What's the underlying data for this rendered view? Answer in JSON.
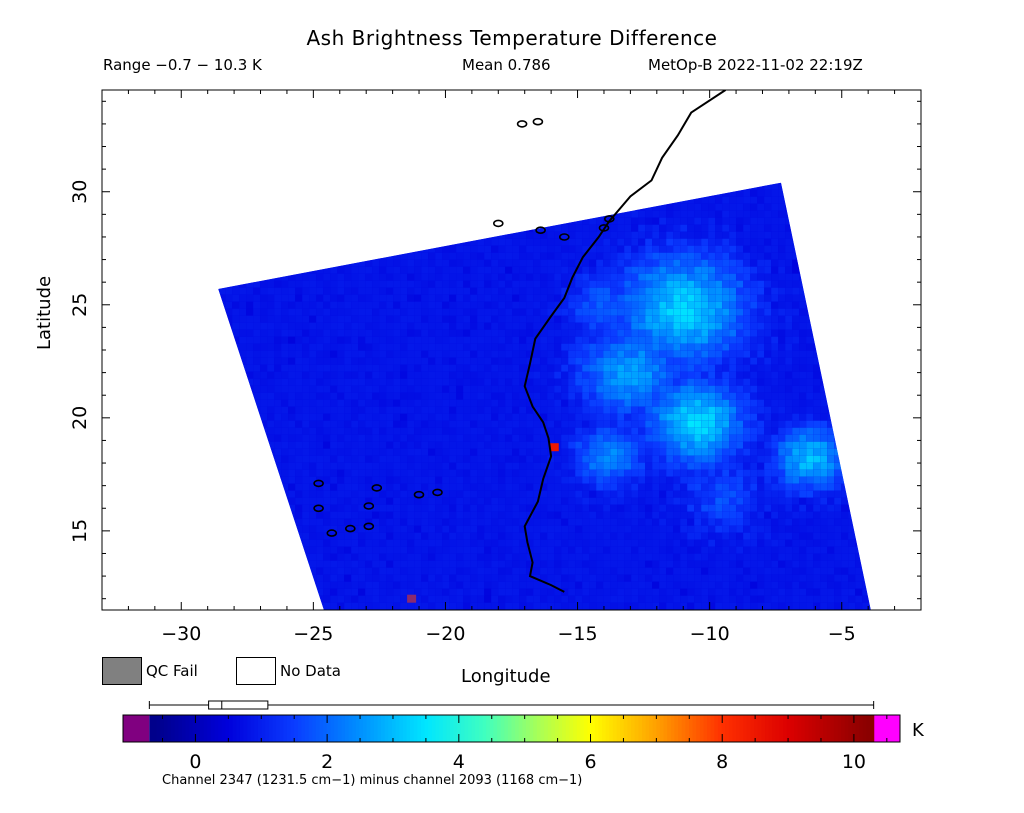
{
  "header": {
    "title": "Ash Brightness Temperature Difference",
    "range": "Range −0.7 − 10.3 K",
    "mean": "Mean 0.786",
    "satellite": "MetOp-B 2022-11-02 22:19Z"
  },
  "axes": {
    "xlabel": "Longitude",
    "ylabel": "Latitude",
    "x_range": [
      -33,
      -2
    ],
    "y_range": [
      11.5,
      34.5
    ],
    "x_ticks": [
      -30,
      -25,
      -20,
      -15,
      -10,
      -5
    ],
    "x_tick_labels": [
      "−30",
      "−25",
      "−20",
      "−15",
      "−10",
      "−5"
    ],
    "y_ticks": [
      15,
      20,
      25,
      30
    ],
    "y_tick_labels": [
      "15",
      "20",
      "25",
      "30"
    ]
  },
  "legend": {
    "qc_fail": "QC Fail",
    "no_data": "No Data",
    "qc_fail_color": "#808080"
  },
  "colorbar": {
    "unit": "K",
    "range": [
      -1.1,
      10.7
    ],
    "ticks": [
      0,
      2,
      4,
      6,
      8,
      10
    ],
    "tick_labels": [
      "0",
      "2",
      "4",
      "6",
      "8",
      "10"
    ],
    "under_color": "#800080",
    "over_color": "#ff00ff",
    "stops": [
      "#00008b",
      "#0000dc",
      "#0a3cff",
      "#0090ff",
      "#00e6ff",
      "#40ffbf",
      "#a8ff58",
      "#ffff00",
      "#ffa000",
      "#ff3000",
      "#dc0000",
      "#8b0000"
    ],
    "stop_values": [
      -0.6,
      0.5,
      1.5,
      2.5,
      3.5,
      4.4,
      5.2,
      6.0,
      7.0,
      8.0,
      9.0,
      10.2
    ],
    "boxplot": {
      "min": -0.7,
      "q1": 0.2,
      "median": 0.4,
      "q3": 1.1,
      "max": 10.3
    },
    "caption": "Channel 2347 (1231.5 cm−1) minus channel 2093 (1168 cm−1)"
  },
  "chart_data": {
    "type": "heatmap",
    "title": "Ash Brightness Temperature Difference",
    "xlabel": "Longitude",
    "ylabel": "Latitude",
    "xlim": [
      -33,
      -2
    ],
    "ylim": [
      11.5,
      34.5
    ],
    "value_unit": "K",
    "value_range": [
      -0.7,
      10.3
    ],
    "mean": 0.786,
    "swath_corners_lonlat": [
      [
        -28.6,
        25.7
      ],
      [
        -7.3,
        30.4
      ],
      [
        -3.9,
        11.5
      ],
      [
        -24.6,
        11.5
      ]
    ],
    "background_value": 0.6,
    "features": [
      {
        "lon": -11.0,
        "lat": 24.8,
        "radius_deg": 3.2,
        "value": 3.2
      },
      {
        "lon": -13.0,
        "lat": 22.0,
        "radius_deg": 2.6,
        "value": 2.6
      },
      {
        "lon": -10.5,
        "lat": 19.8,
        "radius_deg": 2.4,
        "value": 3.3
      },
      {
        "lon": -6.2,
        "lat": 18.2,
        "radius_deg": 1.8,
        "value": 3.0
      },
      {
        "lon": -13.8,
        "lat": 18.3,
        "radius_deg": 1.8,
        "value": 2.4
      },
      {
        "lon": -14.0,
        "lat": 25.0,
        "radius_deg": 1.8,
        "value": 1.9
      },
      {
        "lon": -9.5,
        "lat": 16.5,
        "radius_deg": 2.2,
        "value": 1.6
      }
    ],
    "hotspots": [
      {
        "lon": -15.9,
        "lat": 18.7,
        "value": 8.5
      },
      {
        "lon": -21.3,
        "lat": 12.0,
        "value": -0.9
      }
    ],
    "coastline_lonlat": [
      [
        -9.4,
        34.5
      ],
      [
        -10.7,
        33.5
      ],
      [
        -11.2,
        32.5
      ],
      [
        -11.8,
        31.5
      ],
      [
        -12.2,
        30.5
      ],
      [
        -13.0,
        29.8
      ],
      [
        -13.8,
        28.7
      ],
      [
        -14.2,
        28.0
      ],
      [
        -14.8,
        27.1
      ],
      [
        -15.2,
        26.2
      ],
      [
        -15.5,
        25.3
      ],
      [
        -16.0,
        24.5
      ],
      [
        -16.6,
        23.5
      ],
      [
        -16.8,
        22.4
      ],
      [
        -17.0,
        21.4
      ],
      [
        -16.7,
        20.5
      ],
      [
        -16.3,
        19.8
      ],
      [
        -16.1,
        19.1
      ],
      [
        -16.0,
        18.3
      ],
      [
        -16.3,
        17.3
      ],
      [
        -16.5,
        16.3
      ],
      [
        -17.0,
        15.2
      ],
      [
        -16.9,
        14.5
      ],
      [
        -16.7,
        13.6
      ],
      [
        -16.8,
        13.0
      ],
      [
        -16.0,
        12.6
      ],
      [
        -15.5,
        12.3
      ]
    ],
    "islands_lonlat": [
      [
        -17.1,
        33.0
      ],
      [
        -16.5,
        33.1
      ],
      [
        -18.0,
        28.6
      ],
      [
        -16.4,
        28.3
      ],
      [
        -15.5,
        28.0
      ],
      [
        -13.8,
        28.8
      ],
      [
        -14.0,
        28.4
      ],
      [
        -21.0,
        16.6
      ],
      [
        -20.3,
        16.7
      ],
      [
        -22.9,
        16.1
      ],
      [
        -22.6,
        16.9
      ],
      [
        -24.8,
        16.0
      ],
      [
        -24.3,
        14.9
      ],
      [
        -23.6,
        15.1
      ],
      [
        -22.9,
        15.2
      ],
      [
        -24.8,
        17.1
      ]
    ]
  }
}
